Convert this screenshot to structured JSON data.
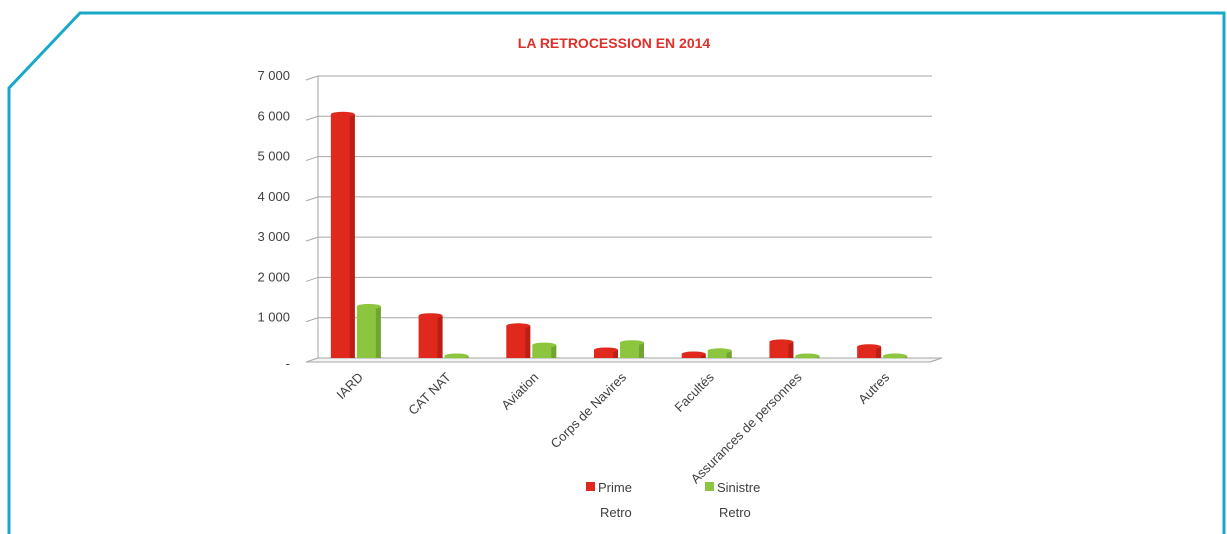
{
  "colors": {
    "frame": "#17a9c7",
    "series_1": "#e0281c",
    "series_2": "#8cc63f",
    "grid": "#a6a6a6",
    "title": "#e0302a"
  },
  "chart_data": {
    "type": "bar",
    "title": "LA RETROCESSION EN 2014",
    "xlabel": "",
    "ylabel": "",
    "categories": [
      "IARD",
      "CAT NAT",
      "Aviation",
      "Corps de Navires",
      "Facultés",
      "Assurances de personnes",
      "Autres"
    ],
    "series": [
      {
        "name": "Prime Retro",
        "name_lines": [
          "Prime",
          "Retro"
        ],
        "values": [
          6050,
          1050,
          800,
          200,
          100,
          400,
          280
        ]
      },
      {
        "name": "Sinistre Retro",
        "name_lines": [
          "Sinistre",
          "Retro"
        ],
        "values": [
          1280,
          50,
          320,
          380,
          180,
          50,
          50
        ]
      }
    ],
    "ylim": [
      0,
      7000
    ],
    "yticks": [
      0,
      1000,
      2000,
      3000,
      4000,
      5000,
      6000,
      7000
    ],
    "ytick_labels": [
      "-",
      "1 000",
      "2 000",
      "3 000",
      "4 000",
      "5 000",
      "6 000",
      "7 000"
    ],
    "grid": true,
    "legend": "bottom"
  }
}
